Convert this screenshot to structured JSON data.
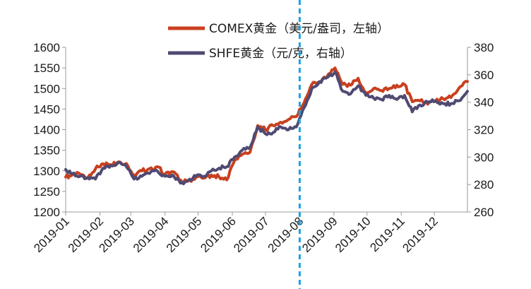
{
  "chart_data": {
    "type": "line",
    "title": "",
    "xlabel": "",
    "ylabel_left": "",
    "ylabel_right": "",
    "x_ticks": [
      "2019-01",
      "2019-02",
      "2019-03",
      "2019-04",
      "2019-05",
      "2019-06",
      "2019-07",
      "2019-08",
      "2019-09",
      "2019-10",
      "2019-11",
      "2019-12"
    ],
    "x_range": [
      "2019-01-01",
      "2019-12-31"
    ],
    "y_left": {
      "min": 1200,
      "max": 1600,
      "step": 50,
      "ticks": [
        "1200",
        "1250",
        "1300",
        "1350",
        "1400",
        "1450",
        "1500",
        "1550",
        "1600"
      ]
    },
    "y_right": {
      "min": 260,
      "max": 380,
      "step": 20,
      "ticks": [
        "260",
        "280",
        "300",
        "320",
        "340",
        "360",
        "380"
      ]
    },
    "grid": false,
    "legend_position": "top-center",
    "marker_line": {
      "x": "2019-08-01",
      "style": "dashed",
      "color": "#1aa3e0"
    },
    "series": [
      {
        "name": "COMEX黄金（美元/盎司，左轴）",
        "axis": "left",
        "color": "#c8401f",
        "points": [
          [
            "2019-01-01",
            1285
          ],
          [
            "2019-01-07",
            1290
          ],
          [
            "2019-01-14",
            1292
          ],
          [
            "2019-01-21",
            1283
          ],
          [
            "2019-01-28",
            1305
          ],
          [
            "2019-02-04",
            1317
          ],
          [
            "2019-02-11",
            1315
          ],
          [
            "2019-02-18",
            1322
          ],
          [
            "2019-02-25",
            1318
          ],
          [
            "2019-03-04",
            1290
          ],
          [
            "2019-03-11",
            1300
          ],
          [
            "2019-03-18",
            1305
          ],
          [
            "2019-03-25",
            1310
          ],
          [
            "2019-04-01",
            1292
          ],
          [
            "2019-04-08",
            1298
          ],
          [
            "2019-04-15",
            1278
          ],
          [
            "2019-04-22",
            1275
          ],
          [
            "2019-04-29",
            1284
          ],
          [
            "2019-05-06",
            1282
          ],
          [
            "2019-05-13",
            1290
          ],
          [
            "2019-05-20",
            1285
          ],
          [
            "2019-05-27",
            1278
          ],
          [
            "2019-06-03",
            1325
          ],
          [
            "2019-06-10",
            1340
          ],
          [
            "2019-06-17",
            1345
          ],
          [
            "2019-06-24",
            1410
          ],
          [
            "2019-07-01",
            1400
          ],
          [
            "2019-07-08",
            1410
          ],
          [
            "2019-07-15",
            1418
          ],
          [
            "2019-07-22",
            1425
          ],
          [
            "2019-07-29",
            1432
          ],
          [
            "2019-08-05",
            1465
          ],
          [
            "2019-08-12",
            1510
          ],
          [
            "2019-08-19",
            1515
          ],
          [
            "2019-08-26",
            1530
          ],
          [
            "2019-09-02",
            1550
          ],
          [
            "2019-09-09",
            1510
          ],
          [
            "2019-09-16",
            1508
          ],
          [
            "2019-09-23",
            1525
          ],
          [
            "2019-09-30",
            1490
          ],
          [
            "2019-10-07",
            1500
          ],
          [
            "2019-10-14",
            1495
          ],
          [
            "2019-10-21",
            1500
          ],
          [
            "2019-10-28",
            1508
          ],
          [
            "2019-11-04",
            1510
          ],
          [
            "2019-11-11",
            1468
          ],
          [
            "2019-11-18",
            1470
          ],
          [
            "2019-11-25",
            1462
          ],
          [
            "2019-12-02",
            1470
          ],
          [
            "2019-12-09",
            1475
          ],
          [
            "2019-12-16",
            1478
          ],
          [
            "2019-12-23",
            1500
          ],
          [
            "2019-12-31",
            1517
          ]
        ]
      },
      {
        "name": "SHFE黄金（元/克，右轴）",
        "axis": "right",
        "color": "#4f4a72",
        "points": [
          [
            "2019-01-01",
            291
          ],
          [
            "2019-01-07",
            288
          ],
          [
            "2019-01-14",
            286
          ],
          [
            "2019-01-21",
            285
          ],
          [
            "2019-01-28",
            284
          ],
          [
            "2019-02-04",
            292
          ],
          [
            "2019-02-11",
            294
          ],
          [
            "2019-02-18",
            296
          ],
          [
            "2019-02-25",
            293
          ],
          [
            "2019-03-04",
            284
          ],
          [
            "2019-03-11",
            286
          ],
          [
            "2019-03-18",
            288
          ],
          [
            "2019-03-25",
            290
          ],
          [
            "2019-04-01",
            286
          ],
          [
            "2019-04-08",
            287
          ],
          [
            "2019-04-15",
            281
          ],
          [
            "2019-04-22",
            283
          ],
          [
            "2019-04-29",
            286
          ],
          [
            "2019-05-06",
            286
          ],
          [
            "2019-05-13",
            290
          ],
          [
            "2019-05-20",
            292
          ],
          [
            "2019-05-27",
            293
          ],
          [
            "2019-06-03",
            300
          ],
          [
            "2019-06-10",
            305
          ],
          [
            "2019-06-17",
            307
          ],
          [
            "2019-06-24",
            322
          ],
          [
            "2019-07-01",
            317
          ],
          [
            "2019-07-08",
            318
          ],
          [
            "2019-07-15",
            322
          ],
          [
            "2019-07-22",
            320
          ],
          [
            "2019-07-29",
            322
          ],
          [
            "2019-08-05",
            336
          ],
          [
            "2019-08-12",
            350
          ],
          [
            "2019-08-19",
            355
          ],
          [
            "2019-08-26",
            358
          ],
          [
            "2019-09-02",
            362
          ],
          [
            "2019-09-09",
            348
          ],
          [
            "2019-09-16",
            346
          ],
          [
            "2019-09-23",
            352
          ],
          [
            "2019-09-30",
            345
          ],
          [
            "2019-10-07",
            343
          ],
          [
            "2019-10-14",
            342
          ],
          [
            "2019-10-21",
            345
          ],
          [
            "2019-10-28",
            342
          ],
          [
            "2019-11-04",
            345
          ],
          [
            "2019-11-11",
            333
          ],
          [
            "2019-11-18",
            338
          ],
          [
            "2019-11-25",
            340
          ],
          [
            "2019-12-02",
            341
          ],
          [
            "2019-12-09",
            339
          ],
          [
            "2019-12-16",
            339
          ],
          [
            "2019-12-23",
            341
          ],
          [
            "2019-12-31",
            348
          ]
        ]
      }
    ]
  }
}
